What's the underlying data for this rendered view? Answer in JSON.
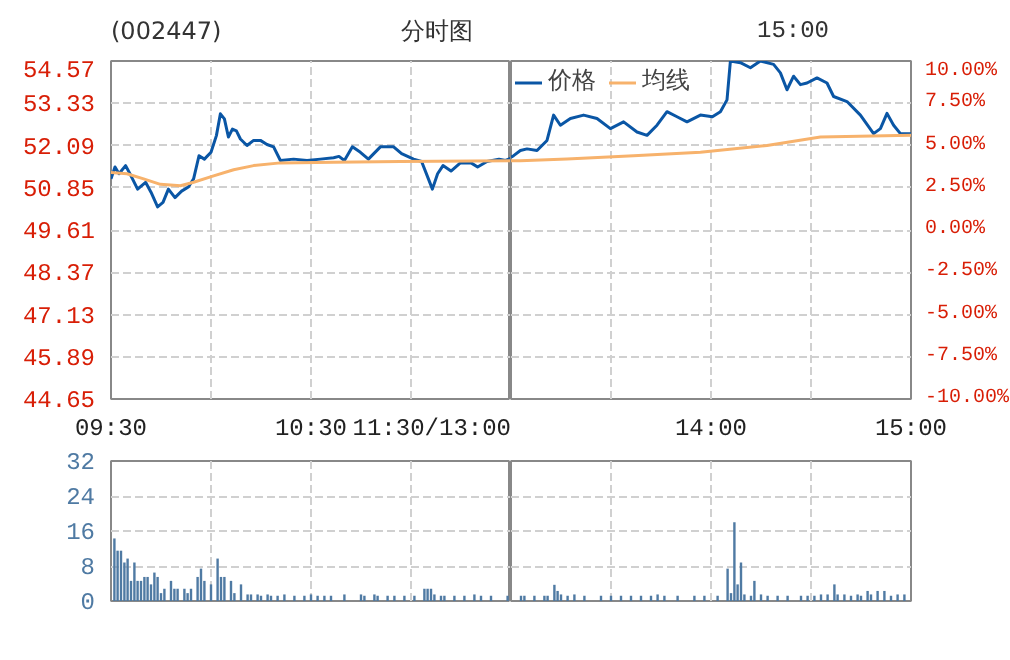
{
  "chart_data": [
    {
      "type": "line",
      "title": "(002447)",
      "subtitle": "分时图",
      "xlim": [
        9.5,
        11.5
      ],
      "xticks": [
        {
          "value": 9.5,
          "label": "09:30"
        },
        {
          "value": 10,
          "label": null
        },
        {
          "value": 10.5,
          "label": "10:30"
        },
        {
          "value": 11,
          "label": null
        },
        {
          "value": 11.5,
          "label": "11:30/13:00"
        }
      ],
      "ylim": [
        44.65,
        54.57
      ],
      "yticks": [
        44.65,
        45.89,
        47.13,
        48.37,
        49.61,
        50.85,
        52.09,
        53.33,
        54.57
      ],
      "grid": true,
      "series": [
        {
          "color": "#0a56a5",
          "x": [
            9.5,
            9.52,
            9.54,
            9.573,
            9.6,
            9.633,
            9.673,
            9.7,
            9.733,
            9.76,
            9.787,
            9.82,
            9.853,
            9.887,
            9.913,
            9.94,
            9.967,
            10,
            10.027,
            10.047,
            10.067,
            10.087,
            10.107,
            10.127,
            10.147,
            10.18,
            10.213,
            10.247,
            10.28,
            10.313,
            10.347,
            10.413,
            10.48,
            10.547,
            10.613,
            10.64,
            10.667,
            10.707,
            10.747,
            10.787,
            10.847,
            10.913,
            10.953,
            11.013,
            11.053,
            11.087,
            11.107,
            11.133,
            11.16,
            11.2,
            11.247,
            11.3,
            11.333,
            11.38,
            11.44,
            11.473,
            11.5
          ],
          "values": [
            51.11,
            51.46,
            51.26,
            51.5,
            51.2,
            50.81,
            51.01,
            50.72,
            50.29,
            50.42,
            50.81,
            50.56,
            50.75,
            50.87,
            51.11,
            51.79,
            51.69,
            51.89,
            52.38,
            53.02,
            52.87,
            52.34,
            52.57,
            52.52,
            52.28,
            52.09,
            52.24,
            52.24,
            52.12,
            52.05,
            51.65,
            51.69,
            51.65,
            51.69,
            51.73,
            51.77,
            51.65,
            52.05,
            51.89,
            51.69,
            52.05,
            52.05,
            51.85,
            51.69,
            51.62,
            51.11,
            50.81,
            51.26,
            51.5,
            51.34,
            51.58,
            51.58,
            51.46,
            51.62,
            51.69,
            51.65,
            51.72
          ]
        },
        {
          "color": "#f7b26c",
          "x": [
            9.5,
            9.58,
            9.663,
            9.747,
            9.847,
            9.913,
            10.013,
            10.113,
            10.213,
            10.347,
            10.613,
            10.947,
            11.5
          ],
          "values": [
            51.3,
            51.26,
            51.11,
            50.95,
            50.91,
            51.01,
            51.2,
            51.38,
            51.5,
            51.58,
            51.6,
            51.62,
            51.64
          ]
        }
      ]
    },
    {
      "type": "line",
      "annotations": [
        "15:00"
      ],
      "xlim": [
        13,
        15
      ],
      "xticks": [
        {
          "value": 13,
          "label": null
        },
        {
          "value": 13.5,
          "label": null
        },
        {
          "value": 14,
          "label": "14:00"
        },
        {
          "value": 14.5,
          "label": null
        },
        {
          "value": 15,
          "label": "15:00"
        }
      ],
      "y2lim": [
        -10,
        10
      ],
      "y2ticks": [
        {
          "value": -10,
          "label": "-10.00%"
        },
        {
          "value": -7.5,
          "label": "-7.50%"
        },
        {
          "value": -5,
          "label": "-5.00%"
        },
        {
          "value": -2.5,
          "label": "-2.50%"
        },
        {
          "value": 0,
          "label": "0.00%"
        },
        {
          "value": 2.5,
          "label": "2.50%"
        },
        {
          "value": 5,
          "label": "5.00%"
        },
        {
          "value": 7.5,
          "label": "7.50%"
        },
        {
          "value": 10,
          "label": "10.00%"
        }
      ],
      "grid": true,
      "legend": "top left",
      "series": [
        {
          "name": "价格",
          "color": "#0a56a5",
          "axis": "y2",
          "x": [
            13,
            13.013,
            13.047,
            13.08,
            13.13,
            13.18,
            13.213,
            13.247,
            13.297,
            13.363,
            13.43,
            13.497,
            13.563,
            13.63,
            13.68,
            13.73,
            13.78,
            13.83,
            13.88,
            13.947,
            14.007,
            14.047,
            14.08,
            14.097,
            14.147,
            14.197,
            14.247,
            14.313,
            14.347,
            14.38,
            14.413,
            14.447,
            14.48,
            14.53,
            14.58,
            14.613,
            14.68,
            14.747,
            14.813,
            14.847,
            14.88,
            14.913,
            14.947,
            15
          ],
          "values": [
            4.3,
            4.4,
            4.7,
            4.8,
            4.7,
            5.3,
            6.8,
            6.2,
            6.6,
            6.8,
            6.6,
            6.0,
            6.4,
            5.8,
            5.6,
            6.2,
            7.0,
            6.7,
            6.4,
            6.8,
            6.7,
            7.0,
            7.7,
            10.0,
            9.9,
            9.6,
            10.0,
            9.8,
            9.3,
            8.3,
            9.1,
            8.6,
            8.7,
            9.0,
            8.7,
            7.9,
            7.6,
            6.8,
            5.7,
            6.0,
            6.9,
            6.2,
            5.7,
            5.7
          ]
        },
        {
          "name": "均线",
          "color": "#f7b26c",
          "axis": "y2",
          "x": [
            13,
            13.047,
            13.28,
            13.613,
            13.947,
            14.28,
            14.547,
            15
          ],
          "values": [
            4.1,
            4.1,
            4.2,
            4.4,
            4.6,
            5.0,
            5.5,
            5.6
          ]
        }
      ]
    },
    {
      "type": "bar",
      "xlim": [
        9.5,
        11.5
      ],
      "xticks": [
        {
          "value": 9.5,
          "label": null
        },
        {
          "value": 10,
          "label": null
        },
        {
          "value": 10.5,
          "label": null
        },
        {
          "value": 11,
          "label": null
        },
        {
          "value": 11.5,
          "label": null
        }
      ],
      "ylim": [
        0,
        32
      ],
      "yticks": [
        0,
        8,
        16,
        24,
        32
      ],
      "grid": true,
      "tick_labels": "y",
      "color": "#4f7aa3",
      "x": [
        9.517,
        9.533,
        9.55,
        9.567,
        9.583,
        9.6,
        9.617,
        9.633,
        9.65,
        9.667,
        9.683,
        9.7,
        9.717,
        9.733,
        9.75,
        9.767,
        9.8,
        9.817,
        9.833,
        9.867,
        9.883,
        9.9,
        9.933,
        9.95,
        9.967,
        10,
        10.033,
        10.05,
        10.067,
        10.1,
        10.117,
        10.15,
        10.183,
        10.2,
        10.233,
        10.25,
        10.283,
        10.3,
        10.333,
        10.367,
        10.417,
        10.467,
        10.5,
        10.533,
        10.567,
        10.6,
        10.667,
        10.75,
        10.767,
        10.817,
        10.833,
        10.883,
        10.917,
        10.967,
        11.017,
        11.067,
        11.083,
        11.1,
        11.117,
        11.15,
        11.167,
        11.217,
        11.267,
        11.317,
        11.35,
        11.4,
        11.483
      ],
      "values": [
        14.3,
        11.5,
        11.5,
        8.8,
        9.7,
        4.6,
        8.8,
        4.6,
        4.6,
        5.5,
        5.5,
        3.8,
        6.5,
        5.5,
        1.8,
        2.8,
        4.6,
        2.8,
        2.8,
        2.8,
        1.8,
        2.8,
        5.5,
        7.4,
        4.6,
        3.8,
        9.7,
        5.5,
        5.5,
        4.6,
        1.8,
        3.8,
        1.5,
        1.5,
        1.5,
        1.2,
        1.5,
        1.2,
        1.2,
        1.5,
        1.2,
        1.2,
        1.5,
        1.2,
        1.2,
        1.2,
        1.5,
        1.5,
        1.2,
        1.5,
        1.2,
        1.2,
        1.2,
        1.2,
        1.2,
        2.8,
        2.8,
        2.8,
        1.5,
        1.2,
        1.2,
        1.2,
        1.2,
        1.5,
        1.2,
        1.2,
        1.2
      ]
    },
    {
      "type": "bar",
      "xlim": [
        13,
        15
      ],
      "xticks": [
        {
          "value": 13,
          "label": null
        },
        {
          "value": 13.5,
          "label": null
        },
        {
          "value": 14,
          "label": null
        },
        {
          "value": 14.5,
          "label": null
        },
        {
          "value": 15,
          "label": null
        }
      ],
      "ylim": [
        0,
        32
      ],
      "yticks": [
        {
          "value": 8,
          "label": null
        },
        {
          "value": 16,
          "label": null
        },
        {
          "value": 24,
          "label": null
        }
      ],
      "grid": true,
      "tick_labels": false,
      "color": "#4f7aa3",
      "x": [
        13.05,
        13.067,
        13.117,
        13.167,
        13.183,
        13.217,
        13.233,
        13.25,
        13.283,
        13.317,
        13.367,
        13.45,
        13.5,
        13.55,
        13.6,
        13.65,
        13.7,
        13.733,
        13.767,
        13.833,
        13.917,
        13.967,
        14.033,
        14.083,
        14.1,
        14.117,
        14.133,
        14.15,
        14.167,
        14.2,
        14.217,
        14.25,
        14.283,
        14.333,
        14.383,
        14.45,
        14.483,
        14.517,
        14.55,
        14.583,
        14.617,
        14.633,
        14.667,
        14.7,
        14.733,
        14.75,
        14.783,
        14.8,
        14.833,
        14.867,
        14.9,
        14.933,
        14.967
      ],
      "values": [
        1.2,
        1.2,
        1.2,
        1.2,
        1.2,
        3.7,
        2.3,
        1.5,
        1.2,
        1.5,
        1.2,
        1.2,
        1.2,
        1.2,
        1.2,
        1.2,
        1.2,
        1.5,
        1.2,
        1.2,
        1.2,
        1.2,
        1.2,
        7.4,
        1.8,
        18.0,
        3.8,
        8.8,
        1.5,
        1.2,
        4.6,
        1.5,
        1.2,
        1.2,
        1.2,
        1.2,
        1.2,
        1.2,
        1.5,
        1.5,
        3.8,
        1.5,
        1.5,
        1.2,
        1.5,
        1.2,
        2.3,
        1.5,
        2.3,
        2.3,
        1.2,
        1.5,
        1.5
      ]
    }
  ]
}
